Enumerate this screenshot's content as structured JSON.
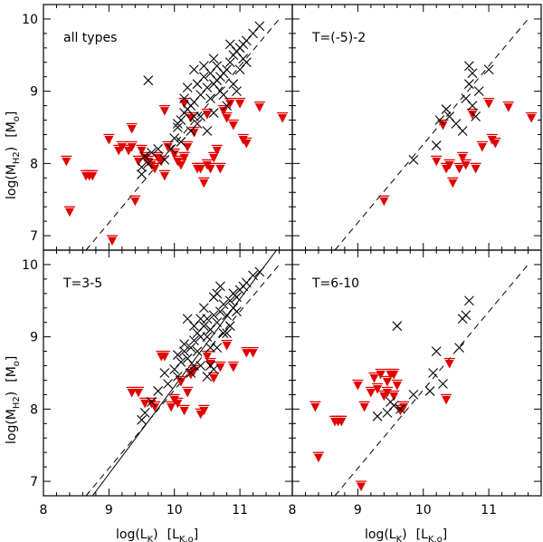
{
  "chart_data": {
    "type": "scatter",
    "layout": "2x2 panels, shared axes",
    "xlabel_main": "log(L",
    "xlabel_sub": "K",
    "xlabel_unit_main": "[L",
    "xlabel_unit_sub": "K,o",
    "xlabel_unit_end": "]",
    "ylabel_main": "log(M",
    "ylabel_sub": "H2",
    "ylabel_unit_main": "[M",
    "ylabel_unit_sub": "o",
    "ylabel_unit_end": "]",
    "xlim": [
      8,
      11.8
    ],
    "ylim": [
      6.8,
      10.2
    ],
    "x_ticks": [
      "8",
      "9",
      "10",
      "11"
    ],
    "x_tick_values": [
      8,
      9,
      10,
      11
    ],
    "y_ticks": [
      "7",
      "8",
      "9",
      "10"
    ],
    "y_tick_values": [
      7,
      8,
      9,
      10
    ],
    "legend": {
      "detections": "black x",
      "upper_limits": "red downward triangle"
    },
    "panels": [
      {
        "label": "all types",
        "fits": [
          {
            "style": "dashed",
            "x": [
              8.65,
              11.6
            ],
            "y": [
              6.8,
              10.0
            ]
          }
        ],
        "detections": [
          [
            9.6,
            8.0
          ],
          [
            9.5,
            7.85
          ],
          [
            9.5,
            7.95
          ],
          [
            9.55,
            8.1
          ],
          [
            9.65,
            8.15
          ],
          [
            9.75,
            8.2
          ],
          [
            9.6,
            9.15
          ],
          [
            9.85,
            8.05
          ],
          [
            9.95,
            8.2
          ],
          [
            10.0,
            8.35
          ],
          [
            10.05,
            8.5
          ],
          [
            10.1,
            8.6
          ],
          [
            10.15,
            8.7
          ],
          [
            10.2,
            8.75
          ],
          [
            10.25,
            8.8
          ],
          [
            10.3,
            8.85
          ],
          [
            10.35,
            8.55
          ],
          [
            10.4,
            8.95
          ],
          [
            10.5,
            9.05
          ],
          [
            10.55,
            8.9
          ],
          [
            10.45,
            9.2
          ],
          [
            10.3,
            9.3
          ],
          [
            10.6,
            9.1
          ],
          [
            10.65,
            9.15
          ],
          [
            10.7,
            9.2
          ],
          [
            10.75,
            9.25
          ],
          [
            10.8,
            9.3
          ],
          [
            10.85,
            9.4
          ],
          [
            10.9,
            9.5
          ],
          [
            10.95,
            9.55
          ],
          [
            11.0,
            9.6
          ],
          [
            11.05,
            9.65
          ],
          [
            11.1,
            9.7
          ],
          [
            11.2,
            9.8
          ],
          [
            11.3,
            9.9
          ],
          [
            10.2,
            9.05
          ],
          [
            10.4,
            8.65
          ],
          [
            10.6,
            8.7
          ],
          [
            10.75,
            8.95
          ],
          [
            10.9,
            9.1
          ],
          [
            10.5,
            8.45
          ],
          [
            10.25,
            8.45
          ],
          [
            10.1,
            8.3
          ],
          [
            10.05,
            8.55
          ],
          [
            10.65,
            9.35
          ],
          [
            10.55,
            9.25
          ],
          [
            10.7,
            9.0
          ],
          [
            10.8,
            8.8
          ],
          [
            11.0,
            9.3
          ],
          [
            11.1,
            9.4
          ],
          [
            10.95,
            9.0
          ],
          [
            10.35,
            9.1
          ],
          [
            10.45,
            9.35
          ],
          [
            10.6,
            9.45
          ],
          [
            10.15,
            8.9
          ],
          [
            10.85,
            9.65
          ],
          [
            11.05,
            9.45
          ],
          [
            10.3,
            8.65
          ]
        ],
        "upper_limits": [
          [
            8.35,
            8.1
          ],
          [
            8.4,
            7.4
          ],
          [
            8.65,
            7.9
          ],
          [
            8.7,
            7.9
          ],
          [
            8.75,
            7.9
          ],
          [
            9.0,
            8.4
          ],
          [
            9.05,
            7.0
          ],
          [
            9.15,
            8.25
          ],
          [
            9.2,
            8.3
          ],
          [
            9.3,
            8.25
          ],
          [
            9.35,
            8.55
          ],
          [
            9.35,
            8.3
          ],
          [
            9.4,
            7.55
          ],
          [
            9.45,
            8.1
          ],
          [
            9.5,
            8.25
          ],
          [
            9.55,
            8.15
          ],
          [
            9.6,
            8.1
          ],
          [
            9.65,
            8.05
          ],
          [
            9.7,
            8.0
          ],
          [
            9.75,
            8.15
          ],
          [
            9.8,
            8.1
          ],
          [
            9.85,
            7.9
          ],
          [
            9.9,
            8.3
          ],
          [
            10.0,
            8.2
          ],
          [
            10.05,
            8.1
          ],
          [
            10.1,
            8.05
          ],
          [
            10.15,
            8.15
          ],
          [
            10.2,
            8.3
          ],
          [
            10.3,
            8.5
          ],
          [
            10.35,
            8.0
          ],
          [
            10.4,
            8.0
          ],
          [
            10.45,
            7.8
          ],
          [
            10.5,
            8.05
          ],
          [
            10.55,
            8.0
          ],
          [
            10.6,
            8.15
          ],
          [
            10.65,
            8.25
          ],
          [
            10.7,
            8.0
          ],
          [
            10.75,
            8.8
          ],
          [
            10.8,
            8.7
          ],
          [
            10.85,
            8.9
          ],
          [
            10.9,
            8.6
          ],
          [
            11.0,
            8.9
          ],
          [
            11.05,
            8.4
          ],
          [
            11.1,
            8.35
          ],
          [
            11.3,
            8.85
          ],
          [
            11.65,
            8.7
          ],
          [
            10.25,
            8.7
          ],
          [
            10.5,
            8.75
          ],
          [
            10.15,
            8.9
          ],
          [
            9.85,
            8.8
          ]
        ]
      },
      {
        "label": "T=(-5)-2",
        "fits": [
          {
            "style": "dashed",
            "x": [
              8.65,
              11.6
            ],
            "y": [
              6.8,
              10.0
            ]
          }
        ],
        "detections": [
          [
            9.85,
            8.05
          ],
          [
            10.25,
            8.6
          ],
          [
            10.35,
            8.75
          ],
          [
            10.4,
            8.65
          ],
          [
            10.65,
            8.9
          ],
          [
            10.7,
            9.1
          ],
          [
            10.75,
            8.8
          ],
          [
            10.8,
            8.65
          ],
          [
            10.85,
            9.0
          ],
          [
            10.7,
            9.35
          ],
          [
            10.75,
            9.25
          ],
          [
            11.0,
            9.3
          ],
          [
            10.2,
            8.25
          ],
          [
            10.5,
            8.55
          ],
          [
            10.6,
            8.45
          ]
        ],
        "upper_limits": [
          [
            9.4,
            7.55
          ],
          [
            10.2,
            8.1
          ],
          [
            10.3,
            8.6
          ],
          [
            10.35,
            8.0
          ],
          [
            10.4,
            8.05
          ],
          [
            10.45,
            7.8
          ],
          [
            10.55,
            8.0
          ],
          [
            10.6,
            8.15
          ],
          [
            10.65,
            8.05
          ],
          [
            10.75,
            8.75
          ],
          [
            10.8,
            8.0
          ],
          [
            10.9,
            8.3
          ],
          [
            11.0,
            8.9
          ],
          [
            11.05,
            8.4
          ],
          [
            11.1,
            8.35
          ],
          [
            11.3,
            8.85
          ],
          [
            11.65,
            8.7
          ]
        ]
      },
      {
        "label": "T=3-5",
        "fits": [
          {
            "style": "dashed",
            "x": [
              8.65,
              11.6
            ],
            "y": [
              6.8,
              10.0
            ]
          },
          {
            "style": "solid",
            "x": [
              8.75,
              11.6
            ],
            "y": [
              6.8,
              10.25
            ]
          }
        ],
        "detections": [
          [
            9.5,
            7.85
          ],
          [
            9.55,
            7.95
          ],
          [
            9.65,
            8.1
          ],
          [
            9.75,
            8.25
          ],
          [
            9.85,
            8.5
          ],
          [
            9.9,
            8.35
          ],
          [
            10.0,
            8.55
          ],
          [
            10.05,
            8.45
          ],
          [
            10.1,
            8.65
          ],
          [
            10.15,
            8.8
          ],
          [
            10.2,
            8.7
          ],
          [
            10.25,
            8.85
          ],
          [
            10.3,
            8.95
          ],
          [
            10.35,
            8.8
          ],
          [
            10.4,
            9.0
          ],
          [
            10.45,
            9.15
          ],
          [
            10.5,
            9.25
          ],
          [
            10.55,
            9.1
          ],
          [
            10.6,
            9.3
          ],
          [
            10.65,
            9.2
          ],
          [
            10.7,
            9.35
          ],
          [
            10.75,
            9.45
          ],
          [
            10.8,
            9.3
          ],
          [
            10.85,
            9.5
          ],
          [
            10.9,
            9.6
          ],
          [
            10.95,
            9.55
          ],
          [
            11.0,
            9.65
          ],
          [
            11.05,
            9.7
          ],
          [
            11.1,
            9.75
          ],
          [
            11.2,
            9.85
          ],
          [
            11.3,
            9.9
          ],
          [
            10.2,
            9.25
          ],
          [
            10.3,
            9.15
          ],
          [
            10.4,
            8.6
          ],
          [
            10.55,
            8.6
          ],
          [
            10.65,
            8.85
          ],
          [
            10.75,
            9.05
          ],
          [
            10.85,
            9.15
          ],
          [
            10.5,
            8.45
          ],
          [
            10.25,
            8.5
          ],
          [
            10.45,
            9.4
          ],
          [
            10.6,
            9.55
          ],
          [
            10.7,
            9.7
          ],
          [
            10.35,
            9.05
          ],
          [
            10.95,
            9.35
          ],
          [
            10.15,
            8.9
          ],
          [
            10.5,
            9.0
          ],
          [
            10.8,
            9.05
          ],
          [
            10.6,
            8.55
          ],
          [
            10.3,
            8.6
          ],
          [
            10.65,
            9.6
          ],
          [
            10.9,
            9.4
          ],
          [
            10.05,
            8.75
          ],
          [
            10.4,
            9.25
          ],
          [
            10.55,
            8.85
          ]
        ],
        "upper_limits": [
          [
            9.35,
            8.3
          ],
          [
            9.45,
            8.3
          ],
          [
            9.55,
            8.15
          ],
          [
            9.65,
            8.15
          ],
          [
            9.7,
            8.1
          ],
          [
            9.8,
            8.8
          ],
          [
            9.85,
            8.8
          ],
          [
            9.95,
            8.1
          ],
          [
            10.0,
            8.2
          ],
          [
            10.05,
            8.15
          ],
          [
            10.1,
            8.45
          ],
          [
            10.15,
            8.05
          ],
          [
            10.2,
            8.3
          ],
          [
            10.3,
            8.6
          ],
          [
            10.4,
            8.0
          ],
          [
            10.45,
            8.05
          ],
          [
            10.5,
            8.8
          ],
          [
            10.6,
            8.5
          ],
          [
            10.7,
            8.65
          ],
          [
            10.8,
            8.95
          ],
          [
            10.9,
            8.65
          ],
          [
            11.1,
            8.85
          ],
          [
            11.2,
            8.85
          ],
          [
            10.55,
            8.7
          ],
          [
            10.25,
            8.55
          ]
        ]
      },
      {
        "label": "T=6-10",
        "fits": [
          {
            "style": "dashed",
            "x": [
              8.65,
              11.6
            ],
            "y": [
              6.8,
              10.0
            ]
          }
        ],
        "detections": [
          [
            9.3,
            7.9
          ],
          [
            9.45,
            7.95
          ],
          [
            9.5,
            8.1
          ],
          [
            9.55,
            8.05
          ],
          [
            9.6,
            9.15
          ],
          [
            9.65,
            8.0
          ],
          [
            10.1,
            8.25
          ],
          [
            10.15,
            8.5
          ],
          [
            10.3,
            8.35
          ],
          [
            10.65,
            9.3
          ],
          [
            10.7,
            9.5
          ],
          [
            10.6,
            9.25
          ],
          [
            10.55,
            8.85
          ],
          [
            10.2,
            8.8
          ],
          [
            9.85,
            8.2
          ]
        ],
        "upper_limits": [
          [
            8.35,
            8.1
          ],
          [
            8.4,
            7.4
          ],
          [
            8.65,
            7.9
          ],
          [
            8.7,
            7.9
          ],
          [
            8.75,
            7.9
          ],
          [
            9.0,
            8.4
          ],
          [
            9.05,
            7.0
          ],
          [
            9.1,
            8.1
          ],
          [
            9.2,
            8.3
          ],
          [
            9.25,
            8.5
          ],
          [
            9.3,
            8.35
          ],
          [
            9.35,
            8.55
          ],
          [
            9.4,
            8.25
          ],
          [
            9.45,
            8.45
          ],
          [
            9.5,
            8.55
          ],
          [
            9.55,
            8.25
          ],
          [
            9.6,
            8.4
          ],
          [
            9.65,
            8.05
          ],
          [
            9.7,
            8.1
          ],
          [
            10.35,
            8.2
          ],
          [
            10.4,
            8.7
          ],
          [
            9.45,
            8.3
          ],
          [
            9.55,
            8.55
          ]
        ]
      }
    ]
  }
}
